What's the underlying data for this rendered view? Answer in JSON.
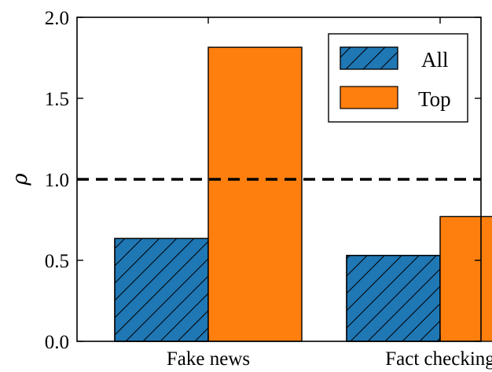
{
  "chart_data": {
    "type": "bar",
    "categories": [
      "Fake news",
      "Fact checking"
    ],
    "series": [
      {
        "name": "All",
        "values": [
          0.635,
          0.53
        ],
        "color": "#1f77b4",
        "pattern": "hatch"
      },
      {
        "name": "Top",
        "values": [
          1.815,
          0.77
        ],
        "color": "#ff7f0e",
        "pattern": "solid"
      }
    ],
    "ylabel": "ρ",
    "ylim": [
      0.0,
      2.0
    ],
    "yticks": [
      "0.0",
      "0.5",
      "1.0",
      "1.5",
      "2.0"
    ],
    "reference_line": {
      "y": 1.0,
      "style": "dashed",
      "color": "#000000"
    },
    "grid": false,
    "legend": {
      "placement": "top-right"
    }
  }
}
